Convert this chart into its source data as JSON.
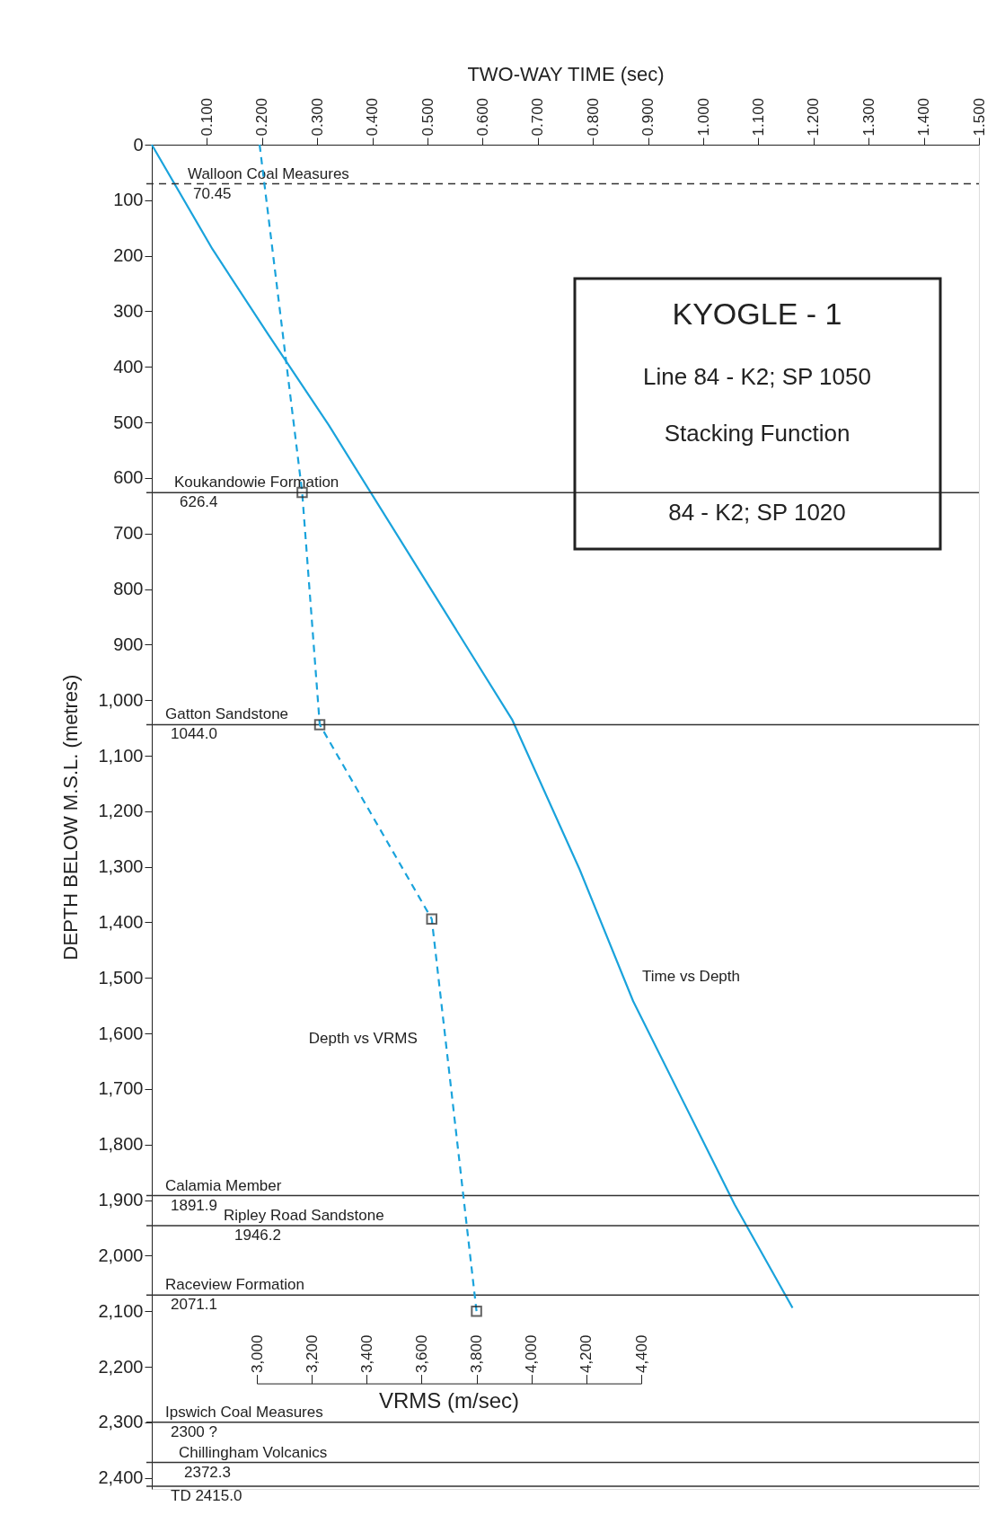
{
  "chart_data": {
    "type": "line",
    "title": "KYOGLE - 1",
    "xlabel": "TWO-WAY TIME  (sec)",
    "ylabel": "DEPTH BELOW M.S.L.  (metres)",
    "x2label": "VRMS (m/sec)",
    "annotations": [
      "Line 84 - K2;  SP 1050",
      "Stacking Function",
      "84 - K2;  SP 1020"
    ],
    "xlim": [
      0,
      1.5
    ],
    "xticks": [
      {
        "value": 0.1,
        "label": "0.100"
      },
      {
        "value": 0.2,
        "label": "0.200"
      },
      {
        "value": 0.3,
        "label": "0.300"
      },
      {
        "value": 0.4,
        "label": "0.400"
      },
      {
        "value": 0.5,
        "label": "0.500"
      },
      {
        "value": 0.6,
        "label": "0.600"
      },
      {
        "value": 0.7,
        "label": "0.700"
      },
      {
        "value": 0.8,
        "label": "0.800"
      },
      {
        "value": 0.9,
        "label": "0.900"
      },
      {
        "value": 1.0,
        "label": "1.000"
      },
      {
        "value": 1.1,
        "label": "1.100"
      },
      {
        "value": 1.2,
        "label": "1.200"
      },
      {
        "value": 1.3,
        "label": "1.300"
      },
      {
        "value": 1.4,
        "label": "1.400"
      },
      {
        "value": 1.5,
        "label": "1.500"
      }
    ],
    "x2lim": [
      3000,
      4400
    ],
    "x2ticks": [
      {
        "value": 3000,
        "label": "3,000"
      },
      {
        "value": 3200,
        "label": "3,200"
      },
      {
        "value": 3400,
        "label": "3,400"
      },
      {
        "value": 3600,
        "label": "3,600"
      },
      {
        "value": 3800,
        "label": "3,800"
      },
      {
        "value": 4000,
        "label": "4,000"
      },
      {
        "value": 4200,
        "label": "4,200"
      },
      {
        "value": 4400,
        "label": "4,400"
      }
    ],
    "ylim": [
      2420,
      0
    ],
    "yticks": [
      0,
      100,
      200,
      300,
      400,
      500,
      600,
      700,
      800,
      900,
      {
        "value": 1000,
        "label": "1,000"
      },
      {
        "value": 1100,
        "label": "1,100"
      },
      {
        "value": 1200,
        "label": "1,200"
      },
      {
        "value": 1300,
        "label": "1,300"
      },
      {
        "value": 1400,
        "label": "1,400"
      },
      {
        "value": 1500,
        "label": "1,500"
      },
      {
        "value": 1600,
        "label": "1,600"
      },
      {
        "value": 1700,
        "label": "1,700"
      },
      {
        "value": 1800,
        "label": "1,800"
      },
      {
        "value": 1900,
        "label": "1,900"
      },
      {
        "value": 2000,
        "label": "2,000"
      },
      {
        "value": 2100,
        "label": "2,100"
      },
      {
        "value": 2200,
        "label": "2,200"
      },
      {
        "value": 2300,
        "label": "2,300"
      },
      {
        "value": 2400,
        "label": "2,400"
      }
    ],
    "series": [
      {
        "name": "Time vs Depth",
        "color": "#1aa3dc",
        "line_style": "solid",
        "x": [
          0,
          0.11,
          0.21,
          0.321,
          0.496,
          0.654,
          0.776,
          0.873,
          1.057,
          1.162
        ],
        "values": [
          0,
          188,
          340,
          505,
          784,
          1036,
          1305,
          1542,
          1908,
          2094
        ]
      },
      {
        "name": "Depth vs VRMS",
        "axis": "x2",
        "color": "#1aa3dc",
        "line_style": "dashed",
        "x": [
          3010,
          3165,
          3229,
          3637,
          3800
        ],
        "values": [
          0,
          626,
          1044,
          1394,
          2100
        ]
      },
      {
        "type": "scatter",
        "axis": "x2",
        "color": "#222222",
        "marker": "square",
        "x": [
          3165,
          3229,
          3637,
          3800
        ],
        "values": [
          626,
          1044,
          1394,
          2100
        ]
      }
    ],
    "ref_lines": [
      {
        "axis": "y",
        "value": 70.45,
        "label": "Walloon Coal Measures\n70.45",
        "color": "#333333",
        "line_style": "dashed"
      },
      {
        "axis": "y",
        "value": 626.4,
        "label": "Koukandowie Formation\n626.4",
        "color": "#333333",
        "line_style": "solid"
      },
      {
        "axis": "y",
        "value": 1044.0,
        "label": "Gatton Sandstone\n1044.0",
        "color": "#333333",
        "line_style": "solid"
      },
      {
        "axis": "y",
        "value": 1891.9,
        "label": "Calamia Member\n1891.9",
        "color": "#333333",
        "line_style": "solid"
      },
      {
        "axis": "y",
        "value": 1946.2,
        "label": "Ripley Road Sandstone\n1946.2",
        "color": "#333333",
        "line_style": "solid"
      },
      {
        "axis": "y",
        "value": 2071.1,
        "label": "Raceview Formation\n2071.1",
        "color": "#333333",
        "line_style": "solid"
      },
      {
        "axis": "y",
        "value": 2300,
        "label": "Ipswich Coal Measures\n2300 ?",
        "color": "#333333",
        "line_style": "solid"
      },
      {
        "axis": "y",
        "value": 2372.3,
        "label": "Chillingham Volcanics\n2372.3",
        "color": "#333333",
        "line_style": "solid"
      },
      {
        "axis": "y",
        "value": 2415.0,
        "label": "\nTD   2415.0",
        "color": "#333333",
        "line_style": "solid"
      }
    ]
  }
}
